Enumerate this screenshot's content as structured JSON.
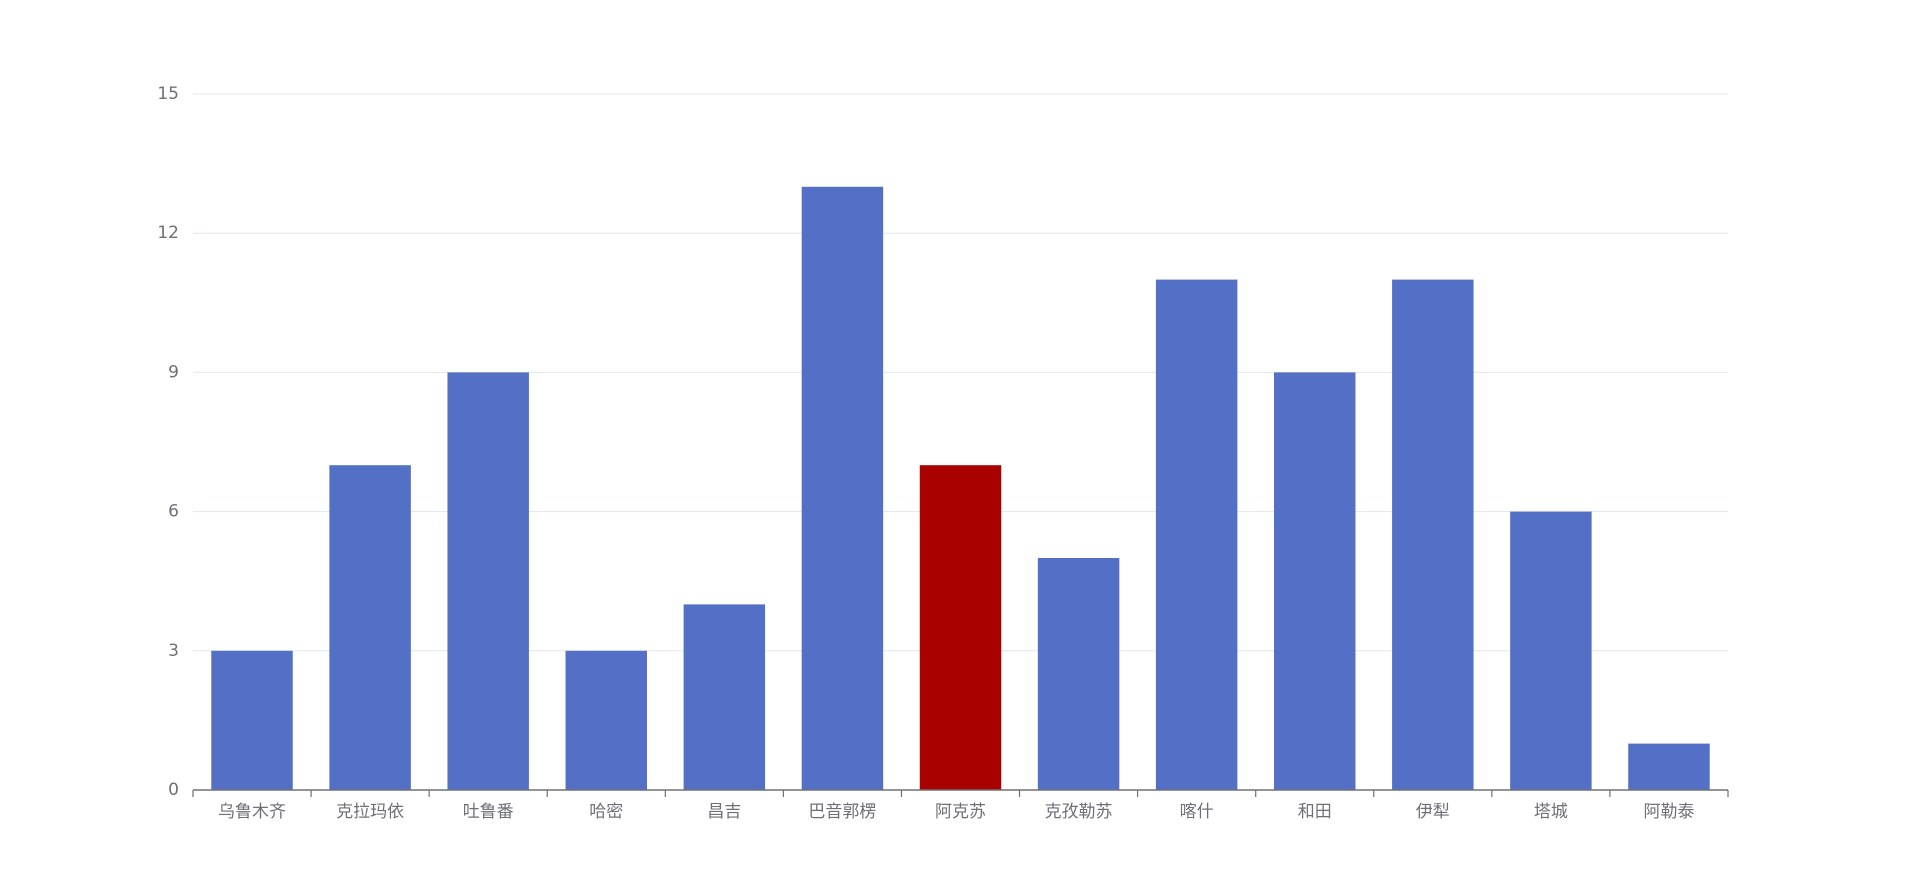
{
  "chart_data": {
    "type": "bar",
    "categories": [
      "乌鲁木齐",
      "克拉玛依",
      "吐鲁番",
      "哈密",
      "昌吉",
      "巴音郭楞",
      "阿克苏",
      "克孜勒苏",
      "喀什",
      "和田",
      "伊犁",
      "塔城",
      "阿勒泰"
    ],
    "values": [
      3,
      7,
      9,
      3,
      4,
      13,
      7,
      5,
      11,
      9,
      11,
      6,
      1
    ],
    "colors": [
      "#5470c6",
      "#5470c6",
      "#5470c6",
      "#5470c6",
      "#5470c6",
      "#5470c6",
      "#a90000",
      "#5470c6",
      "#5470c6",
      "#5470c6",
      "#5470c6",
      "#5470c6",
      "#5470c6"
    ],
    "ylim": [
      0,
      15
    ],
    "yticks": [
      0,
      3,
      6,
      9,
      12,
      15
    ],
    "grid": true
  }
}
